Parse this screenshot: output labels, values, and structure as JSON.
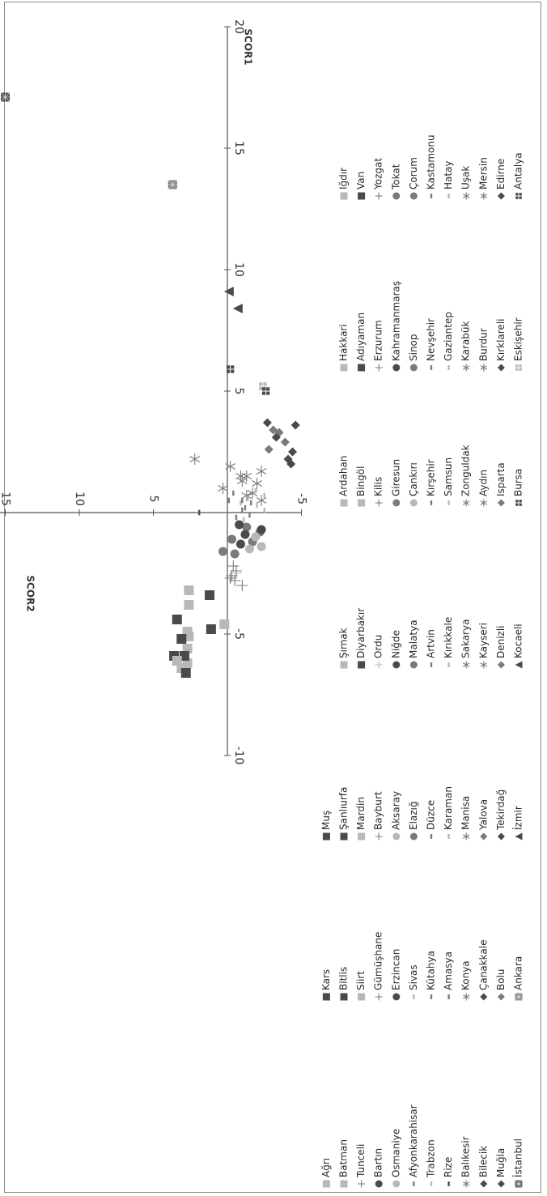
{
  "chart_data": {
    "type": "scatter",
    "xlabel": "SCOR1",
    "ylabel": "SCOR2",
    "xlim": [
      -10,
      20
    ],
    "ylim": [
      -5,
      20
    ],
    "x_ticks": [
      "-10",
      "-5",
      "5",
      "10",
      "15",
      "20"
    ],
    "y_ticks": [
      "20",
      "15",
      "10",
      "5",
      "-5"
    ],
    "orientation": "rotated 90 degrees clockwise",
    "legend_position": "bottom",
    "colors": {
      "dark": "#4a4a4a",
      "mid": "#7a7a7a",
      "light": "#b8b8b8",
      "axis": "#555555"
    },
    "series": [
      {
        "name": "İstanbul",
        "marker": "box-x",
        "tone": "dark",
        "x": [
          17.1
        ],
        "y": [
          15.0
        ]
      },
      {
        "name": "Ankara",
        "marker": "box-x",
        "tone": "mid",
        "x": [
          13.5
        ],
        "y": [
          3.7
        ]
      },
      {
        "name": "İzmir",
        "marker": "triangle",
        "tone": "dark",
        "x": [
          8.4,
          9.1
        ],
        "y": [
          -0.7,
          -0.1
        ]
      },
      {
        "name": "Kocaeli",
        "marker": "triangle",
        "tone": "dark",
        "x": [],
        "y": []
      },
      {
        "name": "Bursa",
        "marker": "quad",
        "tone": "dark",
        "x": [
          5.9
        ],
        "y": [
          -0.2
        ]
      },
      {
        "name": "Eskişehir",
        "marker": "quad",
        "tone": "light",
        "x": [
          5.2
        ],
        "y": [
          -2.4
        ]
      },
      {
        "name": "Antalya",
        "marker": "quad",
        "tone": "dark",
        "x": [
          5.0
        ],
        "y": [
          -2.6
        ]
      },
      {
        "name": "Muğla",
        "marker": "diamond",
        "tone": "dark",
        "x": [
          3.7
        ],
        "y": [
          -2.7
        ]
      },
      {
        "name": "Bolu",
        "marker": "diamond",
        "tone": "mid",
        "x": [
          3.3
        ],
        "y": [
          -3.5
        ]
      },
      {
        "name": "Tekirdağ",
        "marker": "diamond",
        "tone": "dark",
        "x": [
          3.6
        ],
        "y": [
          -4.6
        ]
      },
      {
        "name": "Denizli",
        "marker": "diamond",
        "tone": "mid",
        "x": [
          2.9
        ],
        "y": [
          -3.9
        ]
      },
      {
        "name": "Isparta",
        "marker": "diamond",
        "tone": "mid",
        "x": [
          2.6
        ],
        "y": [
          -2.8
        ]
      },
      {
        "name": "Kırklareli",
        "marker": "diamond",
        "tone": "dark",
        "x": [
          2.5
        ],
        "y": [
          -4.4
        ]
      },
      {
        "name": "Edirne",
        "marker": "diamond",
        "tone": "dark",
        "x": [
          2.2
        ],
        "y": [
          -4.1
        ]
      },
      {
        "name": "Bilecik",
        "marker": "diamond",
        "tone": "dark",
        "x": [
          2.0
        ],
        "y": [
          -4.3
        ]
      },
      {
        "name": "Çanakkale",
        "marker": "diamond",
        "tone": "dark",
        "x": [
          3.1
        ],
        "y": [
          -3.3
        ]
      },
      {
        "name": "Yalova",
        "marker": "diamond",
        "tone": "mid",
        "x": [
          3.4
        ],
        "y": [
          -3.1
        ]
      },
      {
        "name": "Kayseri",
        "marker": "star",
        "tone": "mid",
        "x": [
          2.2
        ],
        "y": [
          2.2
        ]
      },
      {
        "name": "Aydın",
        "marker": "star",
        "tone": "mid",
        "x": [
          1.9
        ],
        "y": [
          -0.2
        ]
      },
      {
        "name": "Burdur",
        "marker": "star",
        "tone": "mid",
        "x": [
          1.7
        ],
        "y": [
          -2.3
        ]
      },
      {
        "name": "Mersin",
        "marker": "star",
        "tone": "mid",
        "x": [
          1.5
        ],
        "y": [
          -1.3
        ]
      },
      {
        "name": "Balıkesir",
        "marker": "star",
        "tone": "mid",
        "x": [
          1.5
        ],
        "y": [
          -0.9
        ]
      },
      {
        "name": "Konya",
        "marker": "star",
        "tone": "mid",
        "x": [
          1.3
        ],
        "y": [
          -1.0
        ]
      },
      {
        "name": "Manisa",
        "marker": "star",
        "tone": "mid",
        "x": [
          1.2
        ],
        "y": [
          -2.0
        ]
      },
      {
        "name": "Sakarya",
        "marker": "star",
        "tone": "mid",
        "x": [
          1.0
        ],
        "y": [
          0.3
        ]
      },
      {
        "name": "Zonguldak",
        "marker": "star",
        "tone": "mid",
        "x": [
          0.8
        ],
        "y": [
          -1.7
        ]
      },
      {
        "name": "Karabük",
        "marker": "star",
        "tone": "mid",
        "x": [
          0.7
        ],
        "y": [
          -1.3
        ]
      },
      {
        "name": "Uşak",
        "marker": "star",
        "tone": "mid",
        "x": [
          0.5
        ],
        "y": [
          -2.3
        ]
      },
      {
        "name": "Rize",
        "marker": "dash",
        "tone": "dark",
        "x": [
          0.0
        ],
        "y": [
          1.9
        ]
      },
      {
        "name": "Amasya",
        "marker": "dash",
        "tone": "mid",
        "x": [
          0.1
        ],
        "y": [
          -1.0
        ]
      },
      {
        "name": "Karaman",
        "marker": "dash",
        "tone": "light",
        "x": [
          0.4
        ],
        "y": [
          -0.9
        ]
      },
      {
        "name": "Kırıkkale",
        "marker": "dash",
        "tone": "light",
        "x": [
          0.6
        ],
        "y": [
          -1.4
        ]
      },
      {
        "name": "Samsun",
        "marker": "dash",
        "tone": "light",
        "x": [
          0.3
        ],
        "y": [
          -2.0
        ]
      },
      {
        "name": "Gaziantep",
        "marker": "dash",
        "tone": "light",
        "x": [
          0.7
        ],
        "y": [
          -2.5
        ]
      },
      {
        "name": "Hatay",
        "marker": "dash",
        "tone": "light",
        "x": [
          0.9
        ],
        "y": [
          -1.9
        ]
      },
      {
        "name": "Trabzon",
        "marker": "dash",
        "tone": "light",
        "x": [
          0.1
        ],
        "y": [
          -2.5
        ]
      },
      {
        "name": "Kütahya",
        "marker": "dash",
        "tone": "mid",
        "x": [
          0.5
        ],
        "y": [
          -0.1
        ]
      },
      {
        "name": "Düzce",
        "marker": "dash",
        "tone": "mid",
        "x": [
          -0.2
        ],
        "y": [
          -0.6
        ]
      },
      {
        "name": "Artvin",
        "marker": "dash",
        "tone": "mid",
        "x": [
          0.8
        ],
        "y": [
          -0.4
        ]
      },
      {
        "name": "Kırşehir",
        "marker": "dash",
        "tone": "mid",
        "x": [
          -0.1
        ],
        "y": [
          -1.5
        ]
      },
      {
        "name": "Nevşehir",
        "marker": "dash",
        "tone": "mid",
        "x": [
          0.2
        ],
        "y": [
          -1.2
        ]
      },
      {
        "name": "Kastamonu",
        "marker": "dash",
        "tone": "mid",
        "x": [
          0.5
        ],
        "y": [
          -1.0
        ]
      },
      {
        "name": "Afyonkarahisar",
        "marker": "dash",
        "tone": "mid",
        "x": [
          0.4
        ],
        "y": [
          -1.6
        ]
      },
      {
        "name": "Sivas",
        "marker": "dash",
        "tone": "light",
        "x": [
          -0.3
        ],
        "y": [
          -1.1
        ]
      },
      {
        "name": "Elazığ",
        "marker": "circle",
        "tone": "mid",
        "x": [
          -1.2
        ],
        "y": [
          -1.7
        ]
      },
      {
        "name": "Malatya",
        "marker": "circle",
        "tone": "mid",
        "x": [
          -1.7
        ],
        "y": [
          -0.5
        ]
      },
      {
        "name": "Çankırı",
        "marker": "circle",
        "tone": "light",
        "x": [
          -1.5
        ],
        "y": [
          -1.5
        ]
      },
      {
        "name": "Sinop",
        "marker": "circle",
        "tone": "mid",
        "x": [
          -0.8
        ],
        "y": [
          -2.2
        ]
      },
      {
        "name": "Çorum",
        "marker": "circle",
        "tone": "mid",
        "x": [
          -0.6
        ],
        "y": [
          -1.3
        ]
      },
      {
        "name": "Osmaniye",
        "marker": "circle",
        "tone": "light",
        "x": [
          -1.0
        ],
        "y": [
          -1.9
        ]
      },
      {
        "name": "Erzincan",
        "marker": "circle",
        "tone": "dark",
        "x": [
          -0.9
        ],
        "y": [
          -1.2
        ]
      },
      {
        "name": "Aksaray",
        "marker": "circle",
        "tone": "light",
        "x": [
          -1.4
        ],
        "y": [
          -2.3
        ]
      },
      {
        "name": "Niğde",
        "marker": "circle",
        "tone": "dark",
        "x": [
          -0.7
        ],
        "y": [
          -2.3
        ]
      },
      {
        "name": "Giresun",
        "marker": "circle",
        "tone": "mid",
        "x": [
          -1.1
        ],
        "y": [
          -0.3
        ]
      },
      {
        "name": "Kahramanmaraş",
        "marker": "circle",
        "tone": "dark",
        "x": [
          -1.3
        ],
        "y": [
          -0.9
        ]
      },
      {
        "name": "Tokat",
        "marker": "circle",
        "tone": "mid",
        "x": [
          -1.6
        ],
        "y": [
          0.3
        ]
      },
      {
        "name": "Bartın",
        "marker": "circle",
        "tone": "dark",
        "x": [
          -0.5
        ],
        "y": [
          -0.8
        ]
      },
      {
        "name": "Gümüşhane",
        "marker": "plus",
        "tone": "mid",
        "x": [
          -2.6
        ],
        "y": [
          -0.3
        ]
      },
      {
        "name": "Bayburt",
        "marker": "plus",
        "tone": "mid",
        "x": [
          -2.8
        ],
        "y": [
          -0.5
        ]
      },
      {
        "name": "Ordu",
        "marker": "plus",
        "tone": "light",
        "x": [
          -2.5
        ],
        "y": [
          -0.6
        ]
      },
      {
        "name": "Kilis",
        "marker": "plus",
        "tone": "mid",
        "x": [
          -3.0
        ],
        "y": [
          -1.0
        ]
      },
      {
        "name": "Erzurum",
        "marker": "plus",
        "tone": "mid",
        "x": [
          -2.4
        ],
        "y": [
          -0.6
        ]
      },
      {
        "name": "Yozgat",
        "marker": "plus",
        "tone": "mid",
        "x": [
          -2.2
        ],
        "y": [
          -0.4
        ]
      },
      {
        "name": "Tunceli",
        "marker": "plus",
        "tone": "mid",
        "x": [
          -2.7
        ],
        "y": [
          -0.2
        ]
      },
      {
        "name": "Siirt",
        "marker": "square",
        "tone": "light",
        "x": [
          -6.4
        ],
        "y": [
          3.1
        ]
      },
      {
        "name": "Mardin",
        "marker": "square",
        "tone": "light",
        "x": [
          -6.2
        ],
        "y": [
          2.7
        ]
      },
      {
        "name": "Diyarbakır",
        "marker": "square",
        "tone": "dark",
        "x": [
          -6.6
        ],
        "y": [
          2.8
        ]
      },
      {
        "name": "Bingöl",
        "marker": "square",
        "tone": "light",
        "x": [
          -5.6
        ],
        "y": [
          2.7
        ]
      },
      {
        "name": "Adıyaman",
        "marker": "square",
        "tone": "dark",
        "x": [
          -5.9
        ],
        "y": [
          2.9
        ]
      },
      {
        "name": "Van",
        "marker": "square",
        "tone": "dark",
        "x": [
          -5.9
        ],
        "y": [
          3.6
        ]
      },
      {
        "name": "Batman",
        "marker": "square",
        "tone": "light",
        "x": [
          -5.1
        ],
        "y": [
          2.6
        ]
      },
      {
        "name": "Bitlis",
        "marker": "square",
        "tone": "dark",
        "x": [
          -4.8
        ],
        "y": [
          1.1
        ]
      },
      {
        "name": "Şanlıurfa",
        "marker": "square",
        "tone": "dark",
        "x": [
          -4.4
        ],
        "y": [
          3.4
        ]
      },
      {
        "name": "Şırnak",
        "marker": "square",
        "tone": "light",
        "x": [
          -4.6
        ],
        "y": [
          0.2
        ]
      },
      {
        "name": "Ardahan",
        "marker": "square",
        "tone": "light",
        "x": [
          -3.8
        ],
        "y": [
          2.6
        ]
      },
      {
        "name": "Hakkari",
        "marker": "square",
        "tone": "light",
        "x": [
          -3.2
        ],
        "y": [
          2.6
        ]
      },
      {
        "name": "Iğdır",
        "marker": "square",
        "tone": "light",
        "x": [
          -4.9
        ],
        "y": [
          2.7
        ]
      },
      {
        "name": "Ağrı",
        "marker": "square",
        "tone": "light",
        "x": [
          -6.1
        ],
        "y": [
          3.4
        ]
      },
      {
        "name": "Kars",
        "marker": "square",
        "tone": "dark",
        "x": [
          -3.4
        ],
        "y": [
          1.2
        ]
      },
      {
        "name": "Muş",
        "marker": "square",
        "tone": "dark",
        "x": [
          -5.2
        ],
        "y": [
          3.1
        ]
      }
    ]
  }
}
